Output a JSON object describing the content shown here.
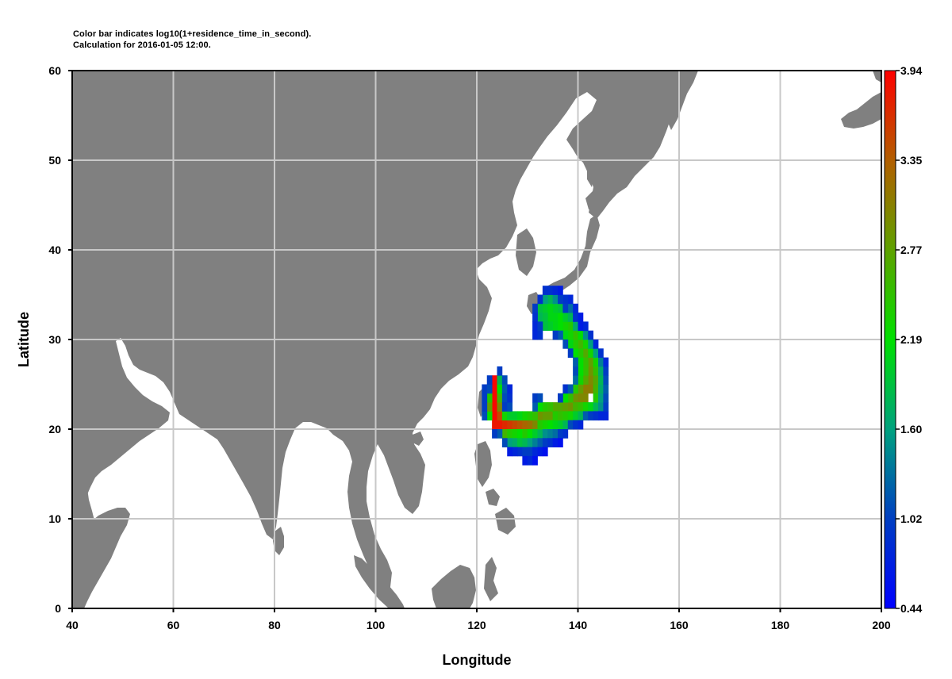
{
  "caption": {
    "line1": "Color bar indicates log10(1+residence_time_in_second).",
    "line2": "Calculation for 2016-01-05 12:00."
  },
  "axes": {
    "xlabel": "Longitude",
    "ylabel": "Latitude",
    "xlim": [
      40,
      200
    ],
    "ylim": [
      0,
      60
    ],
    "xticks": [
      "40",
      "60",
      "80",
      "100",
      "120",
      "140",
      "160",
      "180",
      "200"
    ],
    "yticks": [
      "0",
      "10",
      "20",
      "30",
      "40",
      "50",
      "60"
    ],
    "grid": true
  },
  "colorbar": {
    "ticks": [
      "0.44",
      "1.02",
      "1.60",
      "2.19",
      "2.77",
      "3.35",
      "3.94"
    ],
    "range": [
      0.44,
      3.94
    ],
    "colors": [
      "#0000ff",
      "#00c800",
      "#ff0000"
    ]
  },
  "colors": {
    "land": "#808080",
    "grid": "#c8c8c8"
  },
  "chart_data": {
    "type": "heatmap",
    "xlabel": "Longitude",
    "ylabel": "Latitude",
    "xlim": [
      40,
      200
    ],
    "ylim": [
      0,
      60
    ],
    "cell_size_deg": [
      1,
      1
    ],
    "value_range": [
      0.44,
      3.94
    ],
    "cells": [
      [
        123,
        25,
        3.9
      ],
      [
        123,
        24,
        3.9
      ],
      [
        123,
        23,
        3.9
      ],
      [
        123,
        22,
        3.9
      ],
      [
        123,
        21,
        3.9
      ],
      [
        123,
        20,
        3.8
      ],
      [
        124,
        20,
        3.8
      ],
      [
        125,
        20,
        3.7
      ],
      [
        126,
        20,
        3.6
      ],
      [
        127,
        20,
        3.5
      ],
      [
        128,
        20,
        3.4
      ],
      [
        129,
        20,
        3.3
      ],
      [
        130,
        20,
        3.2
      ],
      [
        131,
        20,
        3.0
      ],
      [
        132,
        21,
        2.9
      ],
      [
        133,
        21,
        2.8
      ],
      [
        134,
        21,
        2.8
      ],
      [
        135,
        22,
        2.7
      ],
      [
        136,
        22,
        2.7
      ],
      [
        137,
        22,
        2.8
      ],
      [
        138,
        22,
        2.9
      ],
      [
        139,
        23,
        2.9
      ],
      [
        140,
        23,
        3.0
      ],
      [
        141,
        23,
        3.0
      ],
      [
        141,
        24,
        3.1
      ],
      [
        142,
        24,
        3.1
      ],
      [
        142,
        25,
        3.0
      ],
      [
        142,
        26,
        2.9
      ],
      [
        142,
        27,
        2.8
      ],
      [
        141,
        28,
        2.7
      ],
      [
        140,
        29,
        2.6
      ],
      [
        139,
        30,
        2.5
      ],
      [
        138,
        31,
        2.4
      ],
      [
        137,
        31,
        2.3
      ],
      [
        136,
        32,
        2.2
      ],
      [
        135,
        32,
        2.1
      ],
      [
        134,
        32,
        2.1
      ],
      [
        133,
        33,
        2.0
      ],
      [
        124,
        21,
        3.5
      ],
      [
        124,
        22,
        3.0
      ],
      [
        124,
        23,
        2.6
      ],
      [
        124,
        24,
        2.2
      ],
      [
        124,
        25,
        1.8
      ],
      [
        122,
        21,
        2.2
      ],
      [
        122,
        22,
        2.8
      ],
      [
        122,
        23,
        2.4
      ],
      [
        125,
        19,
        2.6
      ],
      [
        126,
        19,
        2.4
      ],
      [
        127,
        19,
        2.3
      ],
      [
        128,
        19,
        2.2
      ],
      [
        129,
        19,
        2.4
      ],
      [
        130,
        19,
        2.2
      ],
      [
        131,
        19,
        2.0
      ],
      [
        132,
        19,
        1.8
      ],
      [
        125,
        21,
        2.3
      ],
      [
        126,
        21,
        2.0
      ],
      [
        127,
        21,
        2.0
      ],
      [
        128,
        21,
        2.1
      ],
      [
        129,
        21,
        2.3
      ],
      [
        130,
        21,
        2.4
      ],
      [
        131,
        21,
        2.5
      ],
      [
        132,
        20,
        2.4
      ],
      [
        133,
        20,
        2.3
      ],
      [
        134,
        20,
        2.2
      ],
      [
        135,
        20,
        2.1
      ],
      [
        136,
        20,
        2.0
      ],
      [
        137,
        20,
        1.8
      ],
      [
        132,
        22,
        2.2
      ],
      [
        133,
        22,
        2.4
      ],
      [
        134,
        22,
        2.5
      ],
      [
        135,
        21,
        2.4
      ],
      [
        136,
        21,
        2.5
      ],
      [
        137,
        21,
        2.4
      ],
      [
        138,
        21,
        2.3
      ],
      [
        139,
        22,
        2.6
      ],
      [
        140,
        22,
        2.5
      ],
      [
        141,
        22,
        2.3
      ],
      [
        142,
        22,
        2.1
      ],
      [
        143,
        22,
        1.8
      ],
      [
        139,
        21,
        2.0
      ],
      [
        140,
        21,
        1.8
      ],
      [
        138,
        23,
        2.5
      ],
      [
        137,
        23,
        2.2
      ],
      [
        140,
        24,
        2.8
      ],
      [
        139,
        24,
        2.4
      ],
      [
        143,
        24,
        2.6
      ],
      [
        143,
        23,
        2.4
      ],
      [
        141,
        25,
        2.7
      ],
      [
        143,
        25,
        2.7
      ],
      [
        140,
        25,
        2.3
      ],
      [
        141,
        26,
        2.5
      ],
      [
        143,
        26,
        2.5
      ],
      [
        140,
        26,
        2.2
      ],
      [
        141,
        27,
        2.5
      ],
      [
        143,
        27,
        2.3
      ],
      [
        140,
        27,
        2.2
      ],
      [
        140,
        28,
        2.4
      ],
      [
        142,
        28,
        2.3
      ],
      [
        139,
        28,
        2.2
      ],
      [
        139,
        29,
        2.4
      ],
      [
        141,
        29,
        2.3
      ],
      [
        138,
        29,
        2.1
      ],
      [
        138,
        30,
        2.3
      ],
      [
        140,
        30,
        2.2
      ],
      [
        137,
        30,
        2.1
      ],
      [
        137,
        32,
        2.0
      ],
      [
        138,
        32,
        1.8
      ],
      [
        136,
        31,
        2.2
      ],
      [
        135,
        31,
        2.1
      ],
      [
        134,
        31,
        2.0
      ],
      [
        133,
        31,
        1.9
      ],
      [
        136,
        33,
        1.9
      ],
      [
        135,
        33,
        2.0
      ],
      [
        134,
        33,
        2.1
      ],
      [
        132,
        33,
        1.9
      ],
      [
        132,
        32,
        1.8
      ],
      [
        133,
        32,
        1.9
      ],
      [
        134,
        34,
        1.8
      ],
      [
        133,
        34,
        1.6
      ],
      [
        135,
        34,
        1.5
      ],
      [
        144,
        22,
        1.5
      ],
      [
        144,
        23,
        1.6
      ],
      [
        144,
        24,
        1.7
      ],
      [
        144,
        25,
        1.8
      ],
      [
        144,
        26,
        1.7
      ],
      [
        144,
        27,
        1.4
      ],
      [
        142,
        29,
        1.6
      ],
      [
        141,
        30,
        1.5
      ],
      [
        143,
        28,
        1.6
      ],
      [
        139,
        31,
        1.7
      ],
      [
        138,
        33,
        1.3
      ],
      [
        126,
        18,
        1.6
      ],
      [
        127,
        18,
        1.7
      ],
      [
        128,
        18,
        1.9
      ],
      [
        129,
        18,
        1.8
      ],
      [
        130,
        18,
        1.6
      ],
      [
        131,
        18,
        1.4
      ],
      [
        133,
        19,
        1.5
      ],
      [
        134,
        19,
        1.4
      ],
      [
        135,
        19,
        1.3
      ],
      [
        121,
        21,
        1.1
      ],
      [
        121,
        22,
        1.0
      ],
      [
        121,
        23,
        1.0
      ],
      [
        121,
        24,
        1.0
      ],
      [
        122,
        24,
        1.1
      ],
      [
        122,
        25,
        1.0
      ],
      [
        124,
        26,
        1.0
      ],
      [
        125,
        25,
        1.1
      ],
      [
        125,
        24,
        1.2
      ],
      [
        125,
        23,
        1.1
      ],
      [
        125,
        22,
        1.0
      ],
      [
        126,
        22,
        1.1
      ],
      [
        126,
        24,
        0.8
      ],
      [
        126,
        23,
        0.9
      ],
      [
        124,
        19,
        1.2
      ],
      [
        123,
        19,
        1.0
      ],
      [
        125,
        18,
        1.1
      ],
      [
        132,
        18,
        1.2
      ],
      [
        133,
        18,
        1.0
      ],
      [
        136,
        19,
        1.0
      ],
      [
        137,
        19,
        0.9
      ],
      [
        128,
        17,
        0.9
      ],
      [
        129,
        17,
        1.0
      ],
      [
        130,
        17,
        1.0
      ],
      [
        131,
        17,
        0.8
      ],
      [
        132,
        17,
        0.7
      ],
      [
        127,
        17,
        0.8
      ],
      [
        126,
        17,
        0.7
      ],
      [
        129,
        16,
        0.7
      ],
      [
        130,
        16,
        0.8
      ],
      [
        131,
        16,
        0.6
      ],
      [
        131,
        22,
        1.2
      ],
      [
        131,
        23,
        1.0
      ],
      [
        132,
        23,
        1.1
      ],
      [
        136,
        23,
        1.0
      ],
      [
        137,
        24,
        0.9
      ],
      [
        138,
        24,
        1.2
      ],
      [
        139,
        25,
        1.3
      ],
      [
        139,
        26,
        1.1
      ],
      [
        139,
        27,
        1.2
      ],
      [
        138,
        28,
        1.0
      ],
      [
        137,
        29,
        1.1
      ],
      [
        136,
        30,
        1.2
      ],
      [
        135,
        30,
        1.0
      ],
      [
        145,
        21,
        0.8
      ],
      [
        145,
        22,
        1.0
      ],
      [
        145,
        23,
        1.1
      ],
      [
        145,
        24,
        1.2
      ],
      [
        145,
        25,
        1.1
      ],
      [
        145,
        26,
        1.0
      ],
      [
        145,
        27,
        0.8
      ],
      [
        144,
        28,
        0.9
      ],
      [
        143,
        29,
        0.8
      ],
      [
        142,
        30,
        0.9
      ],
      [
        141,
        31,
        0.8
      ],
      [
        140,
        31,
        0.7
      ],
      [
        139,
        32,
        0.9
      ],
      [
        140,
        32,
        0.7
      ],
      [
        138,
        34,
        0.8
      ],
      [
        137,
        34,
        0.9
      ],
      [
        136,
        34,
        1.0
      ],
      [
        137,
        33,
        1.0
      ],
      [
        139,
        33,
        0.8
      ],
      [
        131,
        33,
        1.0
      ],
      [
        131,
        32,
        0.9
      ],
      [
        131,
        31,
        0.8
      ],
      [
        131,
        30,
        0.8
      ],
      [
        132,
        30,
        0.9
      ],
      [
        132,
        31,
        1.0
      ],
      [
        133,
        35,
        0.9
      ],
      [
        134,
        35,
        0.9
      ],
      [
        135,
        35,
        0.8
      ],
      [
        132,
        34,
        0.9
      ],
      [
        136,
        35,
        0.7
      ],
      [
        138,
        20,
        1.1
      ],
      [
        139,
        20,
        0.9
      ],
      [
        140,
        20,
        0.8
      ],
      [
        141,
        21,
        1.2
      ],
      [
        142,
        21,
        1.0
      ],
      [
        143,
        21,
        0.9
      ],
      [
        144,
        21,
        0.8
      ],
      [
        134,
        18,
        0.9
      ],
      [
        135,
        18,
        0.7
      ],
      [
        136,
        18,
        0.6
      ],
      [
        133,
        17,
        0.6
      ]
    ]
  }
}
